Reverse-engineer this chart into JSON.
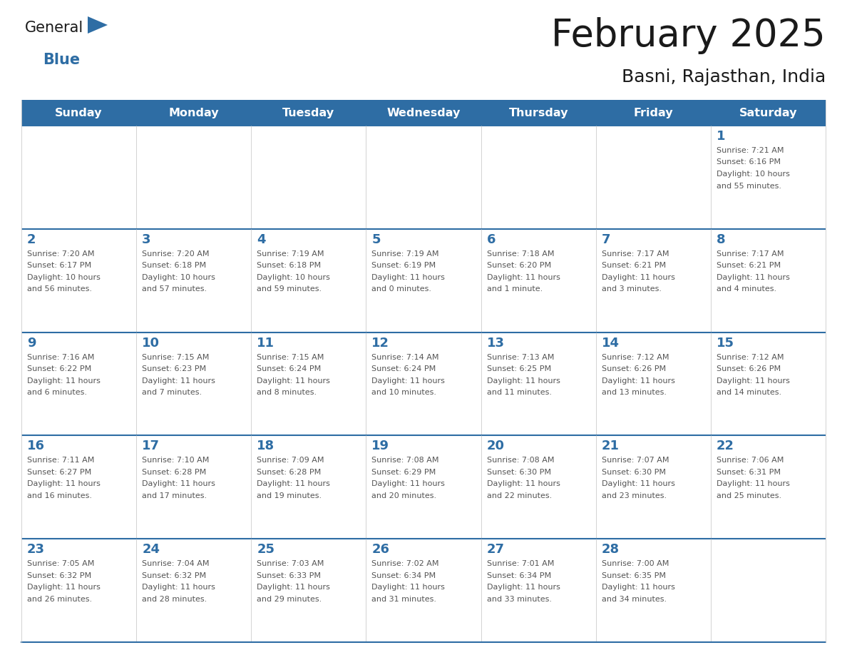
{
  "title": "February 2025",
  "subtitle": "Basni, Rajasthan, India",
  "header_bg": "#2E6DA4",
  "header_text": "#FFFFFF",
  "cell_bg": "#FFFFFF",
  "border_color": "#2E6DA4",
  "day_number_color": "#2E6DA4",
  "info_text_color": "#555555",
  "days_of_week": [
    "Sunday",
    "Monday",
    "Tuesday",
    "Wednesday",
    "Thursday",
    "Friday",
    "Saturday"
  ],
  "title_color": "#1a1a1a",
  "subtitle_color": "#1a1a1a",
  "logo_general_color": "#1a1a1a",
  "logo_blue_color": "#2E6DA4",
  "weeks": [
    [
      {
        "day": null,
        "info": ""
      },
      {
        "day": null,
        "info": ""
      },
      {
        "day": null,
        "info": ""
      },
      {
        "day": null,
        "info": ""
      },
      {
        "day": null,
        "info": ""
      },
      {
        "day": null,
        "info": ""
      },
      {
        "day": 1,
        "info": "Sunrise: 7:21 AM\nSunset: 6:16 PM\nDaylight: 10 hours\nand 55 minutes."
      }
    ],
    [
      {
        "day": 2,
        "info": "Sunrise: 7:20 AM\nSunset: 6:17 PM\nDaylight: 10 hours\nand 56 minutes."
      },
      {
        "day": 3,
        "info": "Sunrise: 7:20 AM\nSunset: 6:18 PM\nDaylight: 10 hours\nand 57 minutes."
      },
      {
        "day": 4,
        "info": "Sunrise: 7:19 AM\nSunset: 6:18 PM\nDaylight: 10 hours\nand 59 minutes."
      },
      {
        "day": 5,
        "info": "Sunrise: 7:19 AM\nSunset: 6:19 PM\nDaylight: 11 hours\nand 0 minutes."
      },
      {
        "day": 6,
        "info": "Sunrise: 7:18 AM\nSunset: 6:20 PM\nDaylight: 11 hours\nand 1 minute."
      },
      {
        "day": 7,
        "info": "Sunrise: 7:17 AM\nSunset: 6:21 PM\nDaylight: 11 hours\nand 3 minutes."
      },
      {
        "day": 8,
        "info": "Sunrise: 7:17 AM\nSunset: 6:21 PM\nDaylight: 11 hours\nand 4 minutes."
      }
    ],
    [
      {
        "day": 9,
        "info": "Sunrise: 7:16 AM\nSunset: 6:22 PM\nDaylight: 11 hours\nand 6 minutes."
      },
      {
        "day": 10,
        "info": "Sunrise: 7:15 AM\nSunset: 6:23 PM\nDaylight: 11 hours\nand 7 minutes."
      },
      {
        "day": 11,
        "info": "Sunrise: 7:15 AM\nSunset: 6:24 PM\nDaylight: 11 hours\nand 8 minutes."
      },
      {
        "day": 12,
        "info": "Sunrise: 7:14 AM\nSunset: 6:24 PM\nDaylight: 11 hours\nand 10 minutes."
      },
      {
        "day": 13,
        "info": "Sunrise: 7:13 AM\nSunset: 6:25 PM\nDaylight: 11 hours\nand 11 minutes."
      },
      {
        "day": 14,
        "info": "Sunrise: 7:12 AM\nSunset: 6:26 PM\nDaylight: 11 hours\nand 13 minutes."
      },
      {
        "day": 15,
        "info": "Sunrise: 7:12 AM\nSunset: 6:26 PM\nDaylight: 11 hours\nand 14 minutes."
      }
    ],
    [
      {
        "day": 16,
        "info": "Sunrise: 7:11 AM\nSunset: 6:27 PM\nDaylight: 11 hours\nand 16 minutes."
      },
      {
        "day": 17,
        "info": "Sunrise: 7:10 AM\nSunset: 6:28 PM\nDaylight: 11 hours\nand 17 minutes."
      },
      {
        "day": 18,
        "info": "Sunrise: 7:09 AM\nSunset: 6:28 PM\nDaylight: 11 hours\nand 19 minutes."
      },
      {
        "day": 19,
        "info": "Sunrise: 7:08 AM\nSunset: 6:29 PM\nDaylight: 11 hours\nand 20 minutes."
      },
      {
        "day": 20,
        "info": "Sunrise: 7:08 AM\nSunset: 6:30 PM\nDaylight: 11 hours\nand 22 minutes."
      },
      {
        "day": 21,
        "info": "Sunrise: 7:07 AM\nSunset: 6:30 PM\nDaylight: 11 hours\nand 23 minutes."
      },
      {
        "day": 22,
        "info": "Sunrise: 7:06 AM\nSunset: 6:31 PM\nDaylight: 11 hours\nand 25 minutes."
      }
    ],
    [
      {
        "day": 23,
        "info": "Sunrise: 7:05 AM\nSunset: 6:32 PM\nDaylight: 11 hours\nand 26 minutes."
      },
      {
        "day": 24,
        "info": "Sunrise: 7:04 AM\nSunset: 6:32 PM\nDaylight: 11 hours\nand 28 minutes."
      },
      {
        "day": 25,
        "info": "Sunrise: 7:03 AM\nSunset: 6:33 PM\nDaylight: 11 hours\nand 29 minutes."
      },
      {
        "day": 26,
        "info": "Sunrise: 7:02 AM\nSunset: 6:34 PM\nDaylight: 11 hours\nand 31 minutes."
      },
      {
        "day": 27,
        "info": "Sunrise: 7:01 AM\nSunset: 6:34 PM\nDaylight: 11 hours\nand 33 minutes."
      },
      {
        "day": 28,
        "info": "Sunrise: 7:00 AM\nSunset: 6:35 PM\nDaylight: 11 hours\nand 34 minutes."
      },
      {
        "day": null,
        "info": ""
      }
    ]
  ]
}
